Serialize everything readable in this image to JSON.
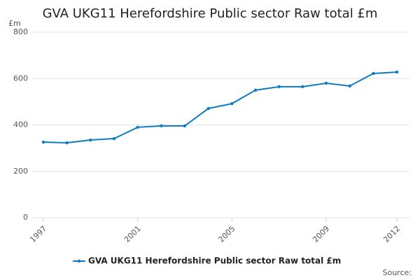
{
  "chart_data": {
    "type": "line",
    "title": "GVA UKG11 Herefordshire Public sector Raw total £m",
    "y_unit": "£m",
    "source": "Source:",
    "x": [
      1997,
      1998,
      1999,
      2000,
      2001,
      2002,
      2003,
      2004,
      2005,
      2006,
      2007,
      2008,
      2009,
      2010,
      2011,
      2012
    ],
    "series": [
      {
        "name": "GVA UKG11 Herefordshire Public sector Raw total £m",
        "color": "#0e7cc1",
        "values": [
          326,
          323,
          335,
          341,
          390,
          396,
          396,
          471,
          492,
          550,
          565,
          565,
          580,
          568,
          622,
          628
        ]
      }
    ],
    "xlim": [
      1997,
      2012
    ],
    "xticks": [
      1997,
      2001,
      2005,
      2009,
      2012
    ],
    "ylim": [
      0,
      800
    ],
    "yticks": [
      0,
      200,
      400,
      600,
      800
    ],
    "grid": true
  }
}
